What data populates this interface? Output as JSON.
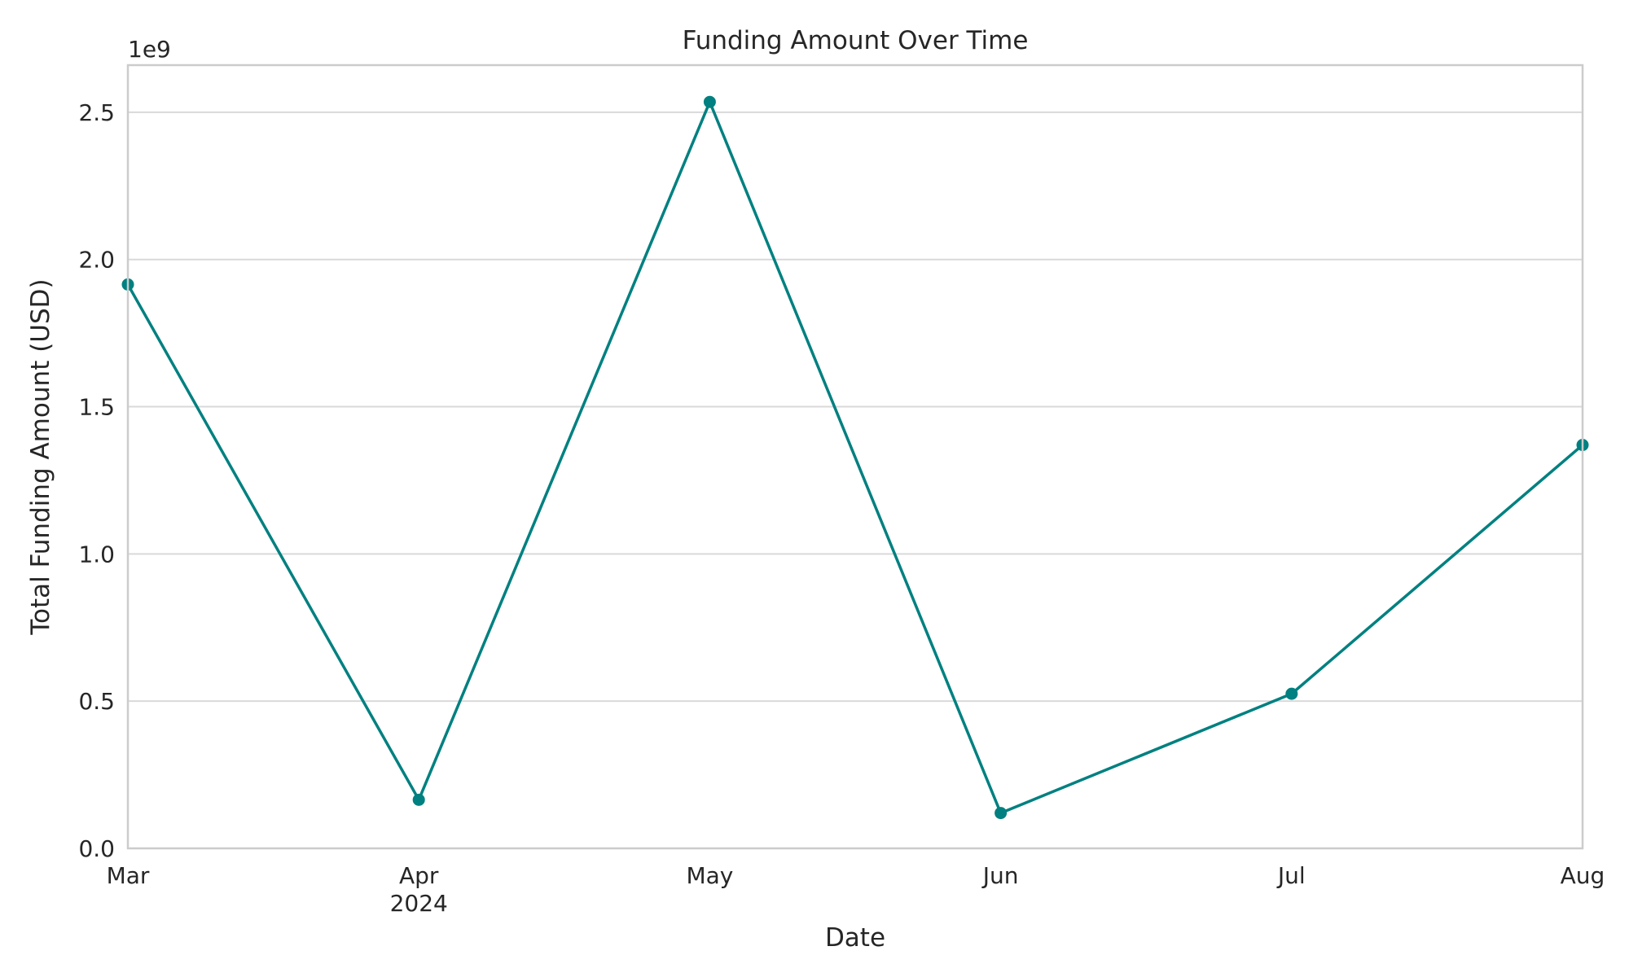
{
  "chart_data": {
    "type": "line",
    "title": "Funding Amount Over Time",
    "xlabel": "Date",
    "ylabel": "Total Funding Amount (USD)",
    "y_offset_label": "1e9",
    "x": [
      "2024-03",
      "2024-04",
      "2024-05",
      "2024-06",
      "2024-07",
      "2024-08"
    ],
    "x_tick_labels": [
      "Mar",
      "Apr",
      "May",
      "Jun",
      "Jul",
      "Aug"
    ],
    "x_year_label": "2024",
    "x_year_label_under": "Apr",
    "y_ticks": [
      0.0,
      0.5,
      1.0,
      1.5,
      2.0,
      2.5
    ],
    "y_tick_labels": [
      "0.0",
      "0.5",
      "1.0",
      "1.5",
      "2.0",
      "2.5"
    ],
    "ylim": [
      0,
      2660000000
    ],
    "grid": "horizontal",
    "color": "#008080",
    "series": [
      {
        "values": [
          1915000000,
          165000000,
          2535000000,
          120000000,
          525000000,
          1370000000
        ],
        "markers": true
      }
    ]
  }
}
